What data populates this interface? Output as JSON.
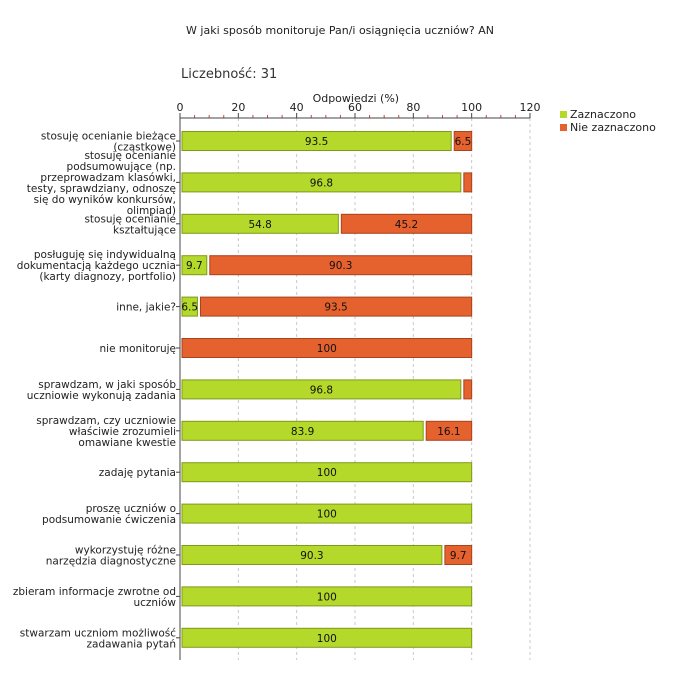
{
  "title": "W jaki sposób monitoruje Pan/i osiągnięcia uczniów?  AN",
  "count_label": "Liczebność: 31",
  "chart_data": {
    "type": "bar",
    "orientation": "horizontal",
    "stacked": true,
    "xlabel": "Odpowiedzi (%)",
    "xlim": [
      0,
      120
    ],
    "xticks": [
      0,
      20,
      40,
      60,
      80,
      100,
      120
    ],
    "grid": true,
    "legend_position": "top-right",
    "categories": [
      [
        "stosuję ocenianie bieżące",
        "(cząstkowe)"
      ],
      [
        "stosuję ocenianie",
        "podsumowujące (np.",
        "przeprowadzam klasówki,",
        "testy, sprawdziany, odnoszę",
        "się do wyników konkursów,",
        "olimpiad)"
      ],
      [
        "stosuję ocenianie",
        "kształtujące"
      ],
      [
        "posługuję się indywidualną",
        "dokumentacją każdego ucznia",
        "(karty diagnozy, portfolio)"
      ],
      [
        "inne, jakie?"
      ],
      [
        "nie monitoruję"
      ],
      [
        "sprawdzam, w jaki sposób",
        "uczniowie wykonują zadania"
      ],
      [
        "sprawdzam, czy uczniowie",
        "właściwie zrozumieli",
        "omawiane kwestie"
      ],
      [
        "zadaję pytania"
      ],
      [
        "proszę uczniów o",
        "podsumowanie ćwiczenia"
      ],
      [
        "wykorzystuję różne",
        "narzędzia diagnostyczne"
      ],
      [
        "zbieram informacje zwrotne od",
        "uczniów"
      ],
      [
        "stwarzam uczniom możliwość",
        "zadawania pytań"
      ]
    ],
    "series": [
      {
        "name": "Zaznaczono",
        "color": "#b5d92b",
        "stroke": "#7f9a1a",
        "values": [
          93.5,
          96.8,
          54.8,
          9.7,
          6.5,
          0,
          96.8,
          83.9,
          100,
          100,
          90.3,
          100,
          100
        ],
        "labels": [
          "93.5",
          "96.8",
          "54.8",
          "9.7",
          "6.5",
          "",
          "96.8",
          "83.9",
          "100",
          "100",
          "90.3",
          "100",
          "100"
        ]
      },
      {
        "name": "Nie zaznaczono",
        "color": "#e5612d",
        "stroke": "#a8431c",
        "values": [
          6.5,
          3.2,
          45.2,
          90.3,
          93.5,
          100,
          3.2,
          16.1,
          0,
          0,
          9.7,
          0,
          0
        ],
        "labels": [
          "6.5",
          "",
          "45.2",
          "90.3",
          "93.5",
          "100",
          "",
          "16.1",
          "",
          "",
          "9.7",
          "",
          ""
        ]
      }
    ]
  }
}
